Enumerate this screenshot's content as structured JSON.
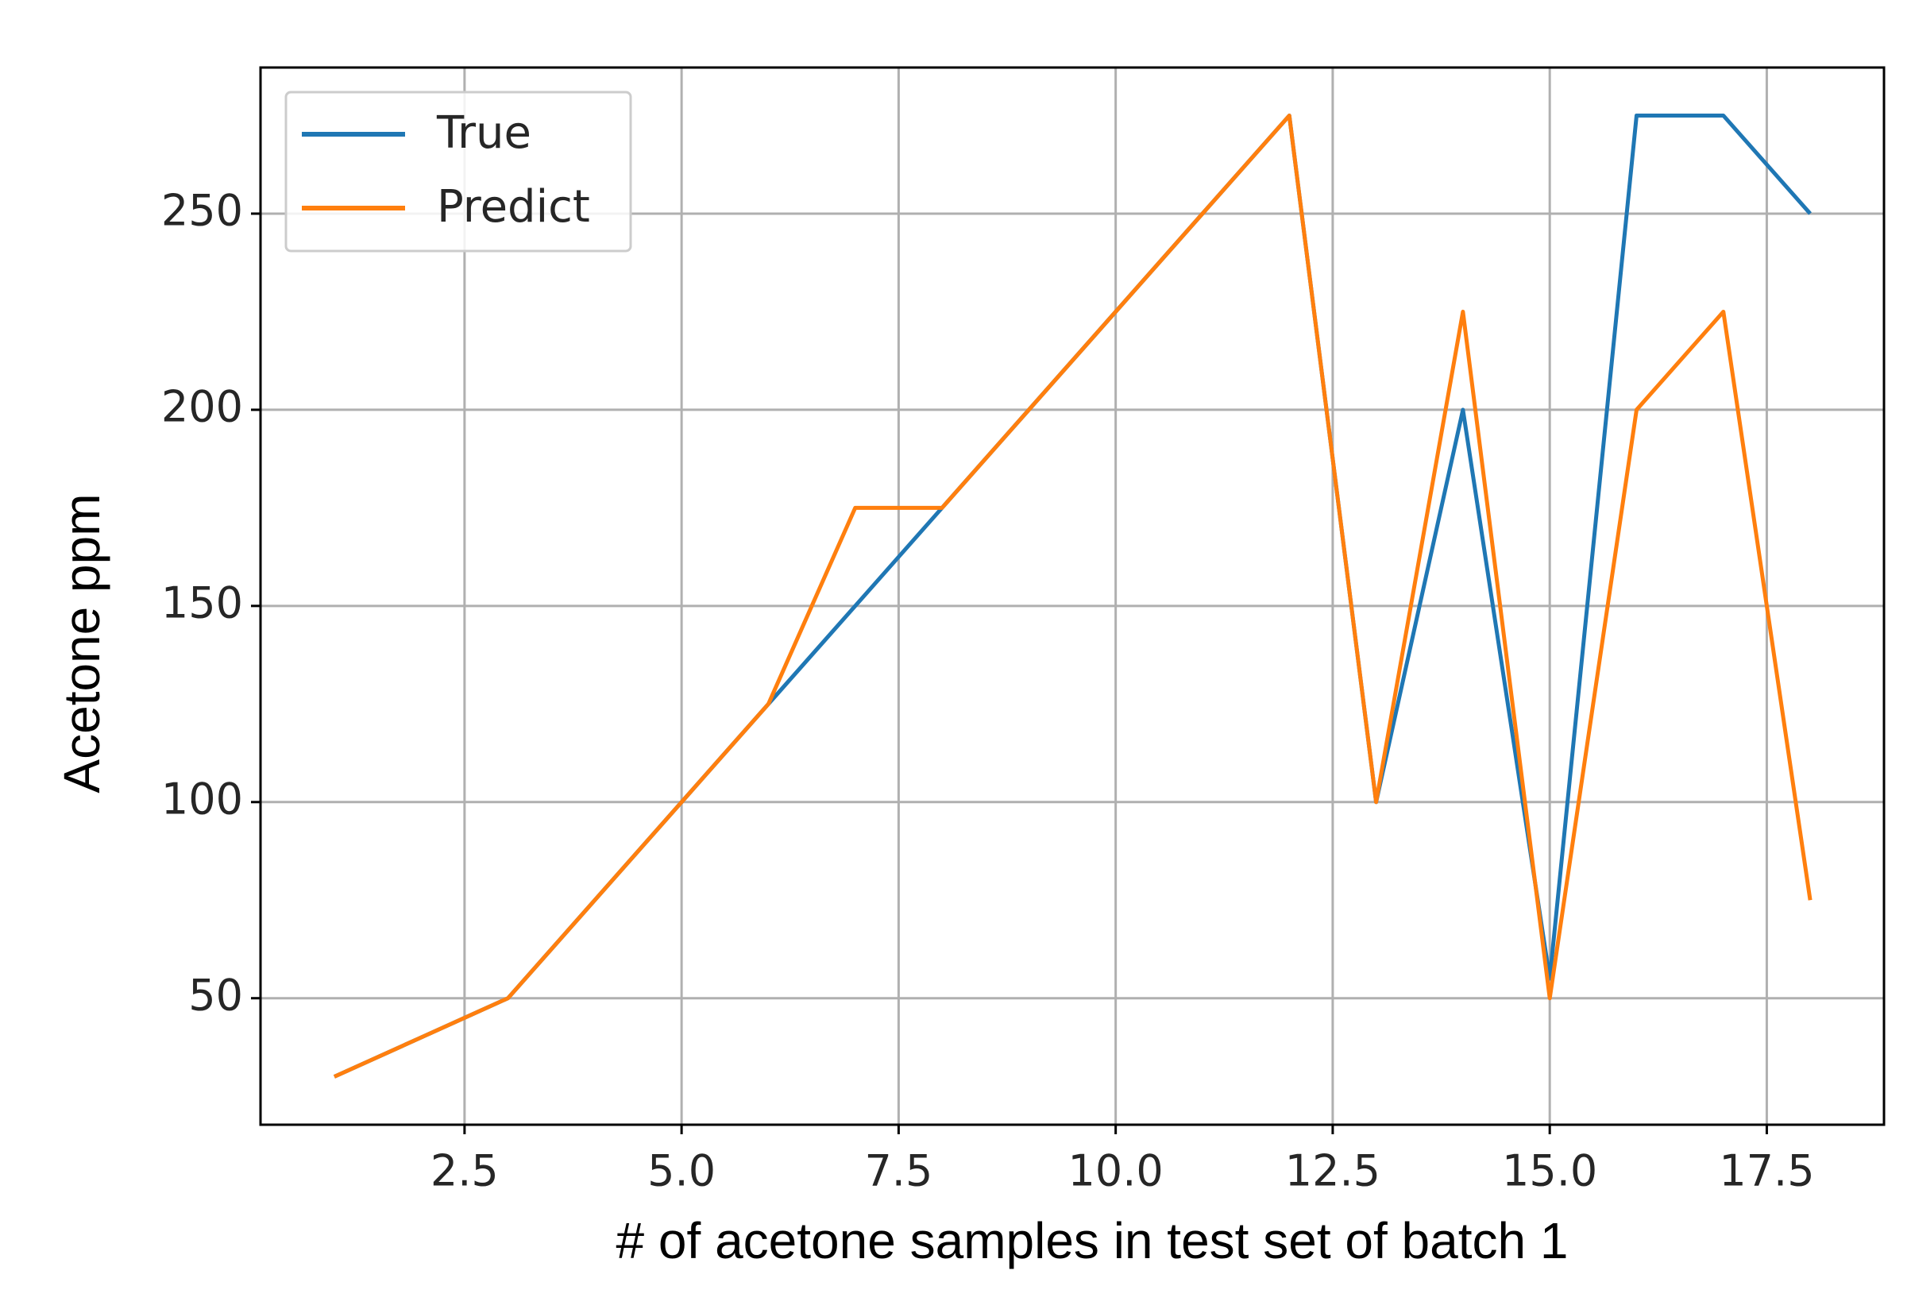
{
  "chart_data": {
    "type": "line",
    "xlabel": "# of acetone samples in test set of batch 1",
    "ylabel": "Acetone ppm",
    "x": [
      1,
      2,
      3,
      4,
      5,
      6,
      7,
      8,
      9,
      10,
      11,
      12,
      13,
      14,
      15,
      16,
      17,
      18
    ],
    "series": [
      {
        "name": "True",
        "color": "#1f77b4",
        "values": [
          30,
          40,
          50,
          75,
          100,
          125,
          150,
          175,
          200,
          225,
          250,
          275,
          100,
          200,
          55,
          275,
          275,
          250
        ]
      },
      {
        "name": "Predict",
        "color": "#ff7f0e",
        "values": [
          30,
          40,
          50,
          75,
          100,
          125,
          175,
          175,
          200,
          225,
          250,
          275,
          100,
          225,
          50,
          200,
          225,
          75
        ]
      }
    ],
    "xlim": [
      0.15,
      18.85
    ],
    "ylim": [
      17.75,
      287.25
    ],
    "xticks": [
      {
        "value": 2.5,
        "label": "2.5"
      },
      {
        "value": 5,
        "label": "5.0"
      },
      {
        "value": 7.5,
        "label": "7.5"
      },
      {
        "value": 10,
        "label": "10.0"
      },
      {
        "value": 12.5,
        "label": "12.5"
      },
      {
        "value": 15,
        "label": "15.0"
      },
      {
        "value": 17.5,
        "label": "17.5"
      }
    ],
    "yticks": [
      50,
      100,
      150,
      200,
      250
    ],
    "grid": true,
    "legend": "upper left"
  }
}
